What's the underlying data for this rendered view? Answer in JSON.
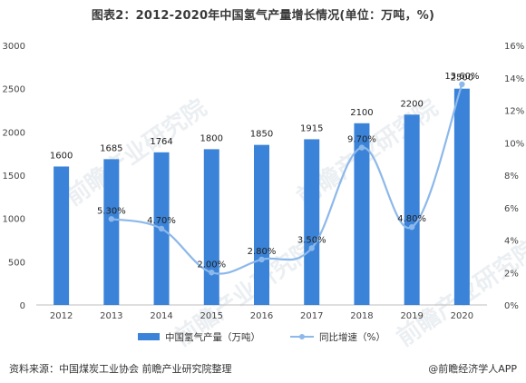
{
  "title": "图表2：2012-2020年中国氢气产量增长情况(单位：万吨，%)",
  "source": "资料来源：中国煤炭工业协会 前瞻产业研究院整理",
  "credit": "@前瞻经济学人APP",
  "watermark": "前瞻产业研究院",
  "colors": {
    "bar": "#3b83d8",
    "line": "#8cb8ea",
    "text": "#333333",
    "axis": "#bfbfbf"
  },
  "chart_data": {
    "type": "bar",
    "categories": [
      "2012",
      "2013",
      "2014",
      "2015",
      "2016",
      "2017",
      "2018",
      "2019",
      "2020"
    ],
    "series": [
      {
        "name": "中国氢气产量（万吨）",
        "type": "bar",
        "axis": "left",
        "values": [
          1600,
          1685,
          1764,
          1800,
          1850,
          1915,
          2100,
          2200,
          2500
        ],
        "labels": [
          "1600",
          "1685",
          "1764",
          "1800",
          "1850",
          "1915",
          "2100",
          "2200",
          "2500"
        ]
      },
      {
        "name": "同比增速（%）",
        "type": "line",
        "axis": "right",
        "values": [
          null,
          5.3,
          4.7,
          2.0,
          2.8,
          3.5,
          9.7,
          4.8,
          13.6
        ],
        "labels": [
          "",
          "5.30%",
          "4.70%",
          "2.00%",
          "2.80%",
          "3.50%",
          "9.70%",
          "4.80%",
          "13.60%"
        ]
      }
    ],
    "y_left": {
      "min": 0,
      "max": 3000,
      "ticks": [
        "0",
        "500",
        "1000",
        "1500",
        "2000",
        "2500",
        "3000"
      ]
    },
    "y_right": {
      "min": 0,
      "max": 16,
      "ticks": [
        "0%",
        "2%",
        "4%",
        "6%",
        "8%",
        "10%",
        "12%",
        "14%",
        "16%"
      ]
    },
    "legend_position": "bottom",
    "grid": false
  }
}
